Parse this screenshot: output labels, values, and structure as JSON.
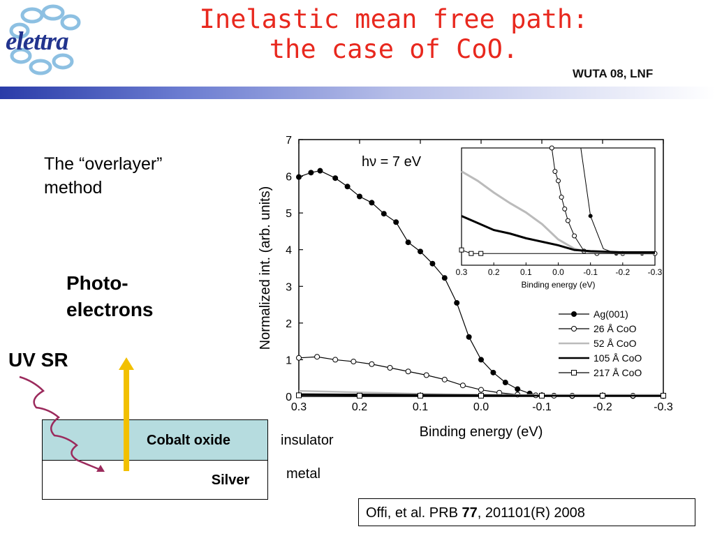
{
  "header": {
    "title_line1": "Inelastic mean free path:",
    "title_line2": "the case of CoO.",
    "conference": "WUTA 08, LNF",
    "logo_text": "elettra"
  },
  "left": {
    "method_line1": "The “overlayer”",
    "method_line2": "method",
    "photo_line1": "Photo-",
    "photo_line2": "electrons",
    "uv_label": "UV SR",
    "cobalt_label": "Cobalt oxide",
    "silver_label": "Silver",
    "insulator_label": "insulator",
    "metal_label": "metal"
  },
  "citation": {
    "prefix": "Offi, et al. PRB ",
    "volume": "77",
    "suffix": ", 201101(R) 2008"
  },
  "colors": {
    "title": "#e8281e",
    "cobalt_fill": "#b6dcdf",
    "arrow_yellow": "#f2c000",
    "wave": "#9b2a5c",
    "bar_start": "#2a3ca8"
  },
  "chart_data": [
    {
      "type": "line",
      "xlabel": "Binding energy (eV)",
      "ylabel": "Normalized int. (arb. units)",
      "annotation": "hν = 7 eV",
      "xlim": [
        0.3,
        -0.3
      ],
      "ylim": [
        0,
        7
      ],
      "x_ticks": [
        "0.3",
        "0.2",
        "0.1",
        "0.0",
        "-0.1",
        "-0.2",
        "-0.3"
      ],
      "y_ticks": [
        "0",
        "1",
        "2",
        "3",
        "4",
        "5",
        "6",
        "7"
      ],
      "legend_position": "bottom-right",
      "series": [
        {
          "name": "Ag(001)",
          "marker": "filled-circle",
          "color": "#000000",
          "x": [
            0.3,
            0.28,
            0.265,
            0.24,
            0.22,
            0.2,
            0.18,
            0.16,
            0.14,
            0.12,
            0.1,
            0.08,
            0.06,
            0.04,
            0.02,
            0.0,
            -0.02,
            -0.04,
            -0.06,
            -0.08,
            -0.1,
            -0.12,
            -0.15,
            -0.2,
            -0.25,
            -0.3
          ],
          "y": [
            5.98,
            6.1,
            6.15,
            5.95,
            5.72,
            5.45,
            5.28,
            4.98,
            4.75,
            4.2,
            3.95,
            3.62,
            3.23,
            2.55,
            1.62,
            1.0,
            0.65,
            0.38,
            0.2,
            0.08,
            0.03,
            0.02,
            0.01,
            0.01,
            0.01,
            0.01
          ]
        },
        {
          "name": "26 Å CoO",
          "marker": "open-circle",
          "color": "#000000",
          "x": [
            0.3,
            0.27,
            0.24,
            0.21,
            0.18,
            0.15,
            0.12,
            0.09,
            0.06,
            0.03,
            0.0,
            -0.03,
            -0.06,
            -0.09,
            -0.12,
            -0.15,
            -0.2,
            -0.25,
            -0.3
          ],
          "y": [
            1.05,
            1.08,
            1.0,
            0.95,
            0.88,
            0.78,
            0.68,
            0.58,
            0.46,
            0.3,
            0.18,
            0.1,
            0.05,
            0.03,
            0.02,
            0.02,
            0.02,
            0.02,
            0.02
          ]
        },
        {
          "name": "52 Å CoO",
          "marker": "none",
          "color": "#bbbbbb",
          "x": [
            0.3,
            0.25,
            0.2,
            0.15,
            0.1,
            0.05,
            0.0,
            -0.05,
            -0.1,
            -0.2,
            -0.3
          ],
          "y": [
            0.15,
            0.13,
            0.11,
            0.09,
            0.07,
            0.06,
            0.05,
            0.04,
            0.04,
            0.04,
            0.04
          ]
        },
        {
          "name": "105 Å CoO",
          "marker": "none",
          "color": "#000000",
          "x": [
            0.3,
            0.2,
            0.1,
            0.0,
            -0.1,
            -0.2,
            -0.3
          ],
          "y": [
            0.06,
            0.05,
            0.04,
            0.03,
            0.02,
            0.02,
            0.02
          ]
        },
        {
          "name": "217 Å CoO",
          "marker": "open-square",
          "color": "#000000",
          "x": [
            0.3,
            0.2,
            0.1,
            0.0,
            -0.1,
            -0.2,
            -0.3
          ],
          "y": [
            0.03,
            0.02,
            0.02,
            0.02,
            0.02,
            0.02,
            0.02
          ]
        }
      ]
    },
    {
      "type": "line",
      "xlabel": "Binding energy (eV)",
      "ylabel": "",
      "xlim": [
        0.3,
        -0.3
      ],
      "x_ticks": [
        "0.3",
        "0.2",
        "0.1",
        "0.0",
        "-0.1",
        "-0.2",
        "-0.3"
      ],
      "note": "inset (zoomed view)",
      "series": [
        {
          "name": "Ag(001)",
          "x": [
            -0.07,
            -0.1,
            -0.14,
            -0.18,
            -0.22,
            -0.26,
            -0.3
          ],
          "y": [
            1.0,
            0.42,
            0.14,
            0.1,
            0.1,
            0.1,
            0.1
          ]
        },
        {
          "name": "26 Å CoO",
          "x": [
            0.02,
            0.01,
            0.0,
            -0.01,
            -0.02,
            -0.03,
            -0.05,
            -0.08,
            -0.12,
            -0.2,
            -0.3
          ],
          "y": [
            1.0,
            0.8,
            0.72,
            0.58,
            0.48,
            0.38,
            0.25,
            0.12,
            0.1,
            0.1,
            0.1
          ]
        },
        {
          "name": "52 Å CoO",
          "x": [
            0.3,
            0.25,
            0.2,
            0.15,
            0.1,
            0.05,
            0.0,
            -0.05,
            -0.1,
            -0.2,
            -0.3
          ],
          "y": [
            0.8,
            0.72,
            0.62,
            0.53,
            0.45,
            0.35,
            0.22,
            0.14,
            0.11,
            0.1,
            0.1
          ]
        },
        {
          "name": "105 Å CoO",
          "x": [
            0.3,
            0.25,
            0.2,
            0.15,
            0.1,
            0.05,
            0.0,
            -0.05,
            -0.1,
            -0.2,
            -0.3
          ],
          "y": [
            0.42,
            0.36,
            0.3,
            0.27,
            0.23,
            0.2,
            0.17,
            0.13,
            0.12,
            0.11,
            0.11
          ]
        },
        {
          "name": "217 Å CoO",
          "x": [
            0.3,
            0.27,
            0.24,
            0.2,
            0.15,
            0.1,
            0.0,
            -0.1,
            -0.2,
            -0.3
          ],
          "y": [
            0.13,
            0.1,
            0.1,
            0.1,
            0.1,
            0.1,
            0.1,
            0.1,
            0.1,
            0.1
          ]
        }
      ]
    }
  ]
}
